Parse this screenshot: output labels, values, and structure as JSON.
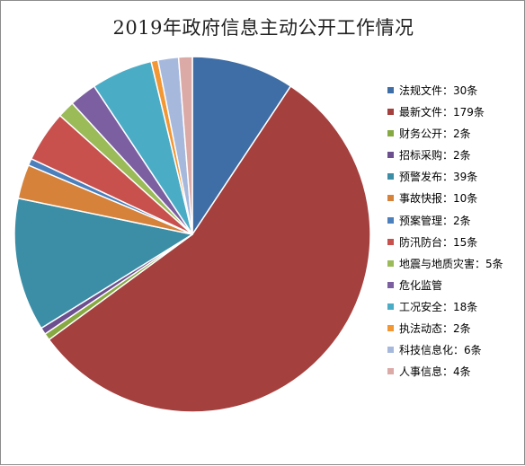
{
  "chart_data": {
    "type": "pie",
    "title": "2019年政府信息主动公开工作情况",
    "legend_position": "right",
    "slices": [
      {
        "name": "法规文件",
        "label": "法规文件：30条",
        "value": 30,
        "color": "#3f6ea6"
      },
      {
        "name": "最新文件",
        "label": "最新文件：179条",
        "value": 179,
        "color": "#a4403e"
      },
      {
        "name": "财务公开",
        "label": "财务公开：2条",
        "value": 2,
        "color": "#86a942"
      },
      {
        "name": "招标采购",
        "label": "招标采购：2条",
        "value": 2,
        "color": "#6c4f8f"
      },
      {
        "name": "预警发布",
        "label": "预警发布：39条",
        "value": 39,
        "color": "#3b8ea6"
      },
      {
        "name": "事故快报",
        "label": "事故快报：10条",
        "value": 10,
        "color": "#d6823a"
      },
      {
        "name": "预案管理",
        "label": "预案管理：2条",
        "value": 2,
        "color": "#4b80bd"
      },
      {
        "name": "防汛防台",
        "label": "防汛防台：15条",
        "value": 15,
        "color": "#c8514e"
      },
      {
        "name": "地震与地质灾害",
        "label": "地震与地质灾害：5条",
        "value": 5,
        "color": "#9bbb59"
      },
      {
        "name": "危化监管",
        "label": "危化监管",
        "value": 8,
        "color": "#7c5fa0"
      },
      {
        "name": "工况安全",
        "label": "工况安全：18条",
        "value": 18,
        "color": "#4bacc6"
      },
      {
        "name": "执法动态",
        "label": "执法动态：2条",
        "value": 2,
        "color": "#f39634"
      },
      {
        "name": "科技信息化",
        "label": "科技信息化：6条",
        "value": 6,
        "color": "#a6b9dd"
      },
      {
        "name": "人事信息",
        "label": "人事信息：4条",
        "value": 4,
        "color": "#dba9a6"
      }
    ]
  }
}
